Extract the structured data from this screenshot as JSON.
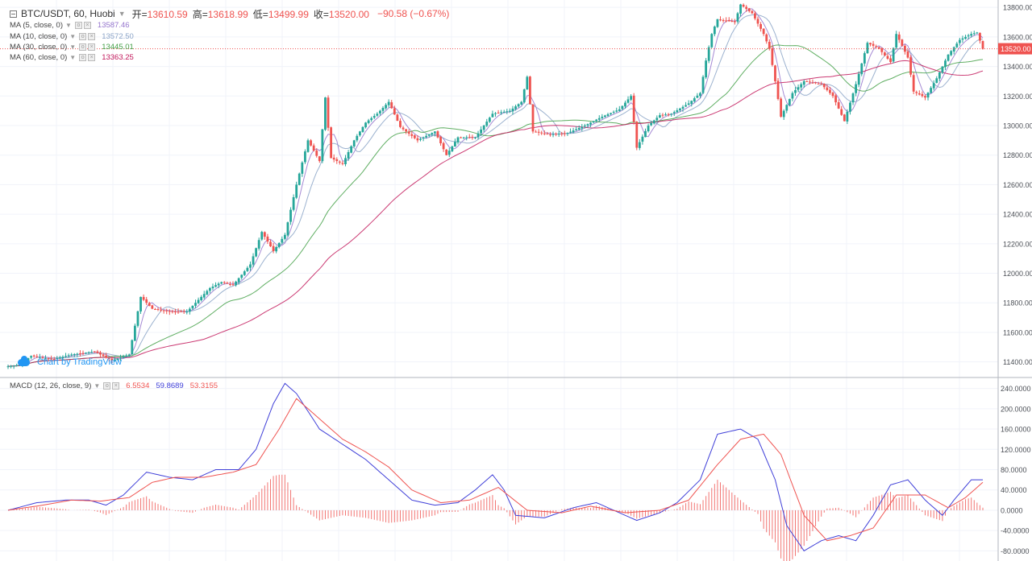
{
  "header": {
    "symbol": "BTC/USDT, 60, Huobi",
    "open_label": "开=",
    "open": "13610.59",
    "high_label": "高=",
    "high": "13618.99",
    "low_label": "低=",
    "low": "13499.99",
    "close_label": "收=",
    "close": "13520.00",
    "change": "−90.58 (−0.67%)"
  },
  "studies": [
    {
      "label": "MA (5, close, 0)",
      "value": "13587.46",
      "color": "#9575cd"
    },
    {
      "label": "MA (10, close, 0)",
      "value": "13572.50",
      "color": "#8ba4c7"
    },
    {
      "label": "MA (30, close, 0)",
      "value": "13445.01",
      "color": "#43a047"
    },
    {
      "label": "MA (60, close, 0)",
      "value": "13363.25",
      "color": "#c2185b"
    }
  ],
  "macd": {
    "label": "MACD (12, 26, close, 9)",
    "hist": "6.5534",
    "macd": "59.8689",
    "signal": "53.3155",
    "hist_color": "#ef5350",
    "macd_color": "#3f3fd8",
    "signal_color": "#ef5350"
  },
  "watermark": "Chart by TradingView",
  "price_tag": "13520.00",
  "chart_data": [
    {
      "type": "candlestick",
      "title": "BTC/USDT, 60, Huobi",
      "ylim": [
        11300,
        13850
      ],
      "grid": true,
      "y_ticks": [
        "13800.00",
        "13600.00",
        "13400.00",
        "13200.00",
        "13000.00",
        "12800.00",
        "12600.00",
        "12400.00",
        "12200.00",
        "12000.00",
        "11800.00",
        "11600.00",
        "11400.00"
      ],
      "y_tick_values": [
        13800,
        13600,
        13400,
        13200,
        13000,
        12800,
        12600,
        12400,
        12200,
        12000,
        11800,
        11600,
        11400
      ],
      "last_price": 13520,
      "close_path": [
        [
          0,
          11370
        ],
        [
          4,
          11380
        ],
        [
          8,
          11440
        ],
        [
          16,
          11420
        ],
        [
          22,
          11450
        ],
        [
          30,
          11470
        ],
        [
          36,
          11410
        ],
        [
          42,
          11450
        ],
        [
          46,
          11840
        ],
        [
          50,
          11760
        ],
        [
          56,
          11740
        ],
        [
          62,
          11740
        ],
        [
          66,
          11820
        ],
        [
          70,
          11900
        ],
        [
          74,
          11940
        ],
        [
          78,
          11920
        ],
        [
          84,
          12060
        ],
        [
          88,
          12280
        ],
        [
          92,
          12150
        ],
        [
          96,
          12260
        ],
        [
          100,
          12600
        ],
        [
          104,
          12900
        ],
        [
          108,
          12760
        ],
        [
          110,
          13190
        ],
        [
          112,
          12780
        ],
        [
          116,
          12740
        ],
        [
          120,
          12900
        ],
        [
          124,
          13020
        ],
        [
          128,
          13080
        ],
        [
          132,
          13160
        ],
        [
          136,
          12990
        ],
        [
          142,
          12900
        ],
        [
          148,
          12960
        ],
        [
          152,
          12800
        ],
        [
          156,
          12920
        ],
        [
          162,
          12920
        ],
        [
          168,
          13080
        ],
        [
          174,
          13100
        ],
        [
          178,
          13160
        ],
        [
          180,
          13330
        ],
        [
          182,
          12960
        ],
        [
          188,
          12940
        ],
        [
          194,
          12950
        ],
        [
          200,
          13000
        ],
        [
          206,
          13060
        ],
        [
          212,
          13110
        ],
        [
          216,
          13200
        ],
        [
          218,
          12850
        ],
        [
          222,
          13000
        ],
        [
          226,
          13070
        ],
        [
          230,
          13080
        ],
        [
          236,
          13150
        ],
        [
          240,
          13220
        ],
        [
          242,
          13440
        ],
        [
          244,
          13620
        ],
        [
          246,
          13720
        ],
        [
          252,
          13700
        ],
        [
          254,
          13820
        ],
        [
          258,
          13760
        ],
        [
          262,
          13620
        ],
        [
          264,
          13520
        ],
        [
          266,
          13300
        ],
        [
          268,
          13060
        ],
        [
          272,
          13220
        ],
        [
          276,
          13300
        ],
        [
          282,
          13280
        ],
        [
          286,
          13200
        ],
        [
          290,
          13030
        ],
        [
          294,
          13280
        ],
        [
          298,
          13560
        ],
        [
          302,
          13520
        ],
        [
          306,
          13430
        ],
        [
          308,
          13620
        ],
        [
          312,
          13460
        ],
        [
          314,
          13230
        ],
        [
          318,
          13190
        ],
        [
          322,
          13320
        ],
        [
          326,
          13480
        ],
        [
          330,
          13580
        ],
        [
          334,
          13620
        ],
        [
          336,
          13630
        ],
        [
          338,
          13520
        ]
      ],
      "ma_series": [
        {
          "name": "MA (5, close, 0)",
          "color": "#9575cd",
          "lag": 2
        },
        {
          "name": "MA (10, close, 0)",
          "color": "#8ba4c7",
          "lag": 5
        },
        {
          "name": "MA (30, close, 0)",
          "color": "#43a047",
          "lag": 16
        },
        {
          "name": "MA (60, close, 0)",
          "color": "#c2185b",
          "lag": 34
        }
      ]
    },
    {
      "type": "line",
      "title": "MACD (12, 26, close, 9)",
      "ylim": [
        -100,
        260
      ],
      "y_ticks": [
        "240.0000",
        "200.0000",
        "160.0000",
        "120.0000",
        "80.0000",
        "40.0000",
        "0.0000",
        "-40.0000",
        "-80.0000"
      ],
      "y_tick_values": [
        240,
        200,
        160,
        120,
        80,
        40,
        0,
        -40,
        -80
      ],
      "series": [
        {
          "name": "MACD",
          "color": "#3f3fd8",
          "points": [
            [
              0,
              0
            ],
            [
              10,
              15
            ],
            [
              20,
              20
            ],
            [
              28,
              20
            ],
            [
              34,
              10
            ],
            [
              40,
              30
            ],
            [
              48,
              75
            ],
            [
              56,
              65
            ],
            [
              64,
              60
            ],
            [
              72,
              80
            ],
            [
              80,
              80
            ],
            [
              86,
              120
            ],
            [
              92,
              210
            ],
            [
              96,
              250
            ],
            [
              100,
              230
            ],
            [
              108,
              160
            ],
            [
              116,
              130
            ],
            [
              124,
              100
            ],
            [
              132,
              60
            ],
            [
              140,
              20
            ],
            [
              148,
              10
            ],
            [
              156,
              15
            ],
            [
              162,
              40
            ],
            [
              168,
              70
            ],
            [
              172,
              40
            ],
            [
              176,
              -10
            ],
            [
              186,
              -15
            ],
            [
              196,
              5
            ],
            [
              204,
              15
            ],
            [
              210,
              0
            ],
            [
              218,
              -20
            ],
            [
              226,
              -5
            ],
            [
              232,
              15
            ],
            [
              240,
              60
            ],
            [
              246,
              150
            ],
            [
              254,
              160
            ],
            [
              260,
              140
            ],
            [
              266,
              60
            ],
            [
              270,
              -30
            ],
            [
              276,
              -80
            ],
            [
              282,
              -60
            ],
            [
              288,
              -50
            ],
            [
              294,
              -60
            ],
            [
              300,
              -10
            ],
            [
              306,
              50
            ],
            [
              312,
              60
            ],
            [
              318,
              20
            ],
            [
              324,
              -10
            ],
            [
              328,
              20
            ],
            [
              334,
              60
            ],
            [
              338,
              60
            ]
          ]
        },
        {
          "name": "Signal",
          "color": "#ef5350",
          "points": [
            [
              0,
              0
            ],
            [
              12,
              10
            ],
            [
              22,
              20
            ],
            [
              32,
              18
            ],
            [
              42,
              25
            ],
            [
              50,
              55
            ],
            [
              58,
              65
            ],
            [
              68,
              65
            ],
            [
              78,
              75
            ],
            [
              86,
              90
            ],
            [
              94,
              160
            ],
            [
              100,
              220
            ],
            [
              108,
              180
            ],
            [
              116,
              140
            ],
            [
              124,
              115
            ],
            [
              132,
              85
            ],
            [
              140,
              40
            ],
            [
              150,
              15
            ],
            [
              160,
              20
            ],
            [
              170,
              45
            ],
            [
              180,
              0
            ],
            [
              192,
              -5
            ],
            [
              202,
              8
            ],
            [
              214,
              -5
            ],
            [
              226,
              0
            ],
            [
              236,
              20
            ],
            [
              246,
              90
            ],
            [
              254,
              140
            ],
            [
              262,
              150
            ],
            [
              268,
              110
            ],
            [
              276,
              -10
            ],
            [
              284,
              -60
            ],
            [
              292,
              -50
            ],
            [
              300,
              -35
            ],
            [
              308,
              30
            ],
            [
              318,
              30
            ],
            [
              326,
              5
            ],
            [
              332,
              25
            ],
            [
              338,
              55
            ]
          ]
        }
      ],
      "histogram": {
        "name": "Histogram",
        "color": "#ef5350"
      }
    }
  ]
}
